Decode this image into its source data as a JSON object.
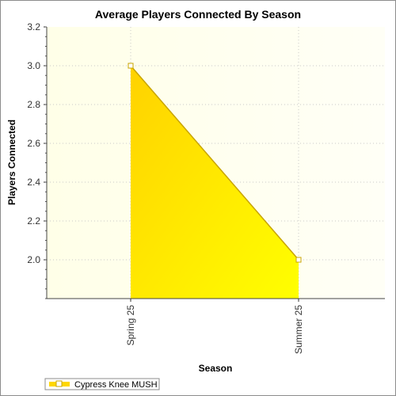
{
  "chart_data": {
    "type": "area",
    "title": "Average Players Connected By Season",
    "xlabel": "Season",
    "ylabel": "Players Connected",
    "categories": [
      "Spring 25",
      "Summer 25"
    ],
    "series": [
      {
        "name": "Cypress Knee MUSH",
        "values": [
          3.0,
          2.0
        ],
        "color": "#ffd700"
      }
    ],
    "ylim": [
      1.8,
      3.2
    ],
    "yticks": [
      "2.0",
      "2.2",
      "2.4",
      "2.6",
      "2.8",
      "3.0",
      "3.2"
    ],
    "grid": true,
    "legend": "bottom-left"
  },
  "colors": {
    "plot_background_start": "#ffffe8",
    "plot_background_end": "#fffff6",
    "fill_start": "#ffd200",
    "fill_end": "#ffff00",
    "line": "#c8a400",
    "grid": "#c8c8c8"
  }
}
